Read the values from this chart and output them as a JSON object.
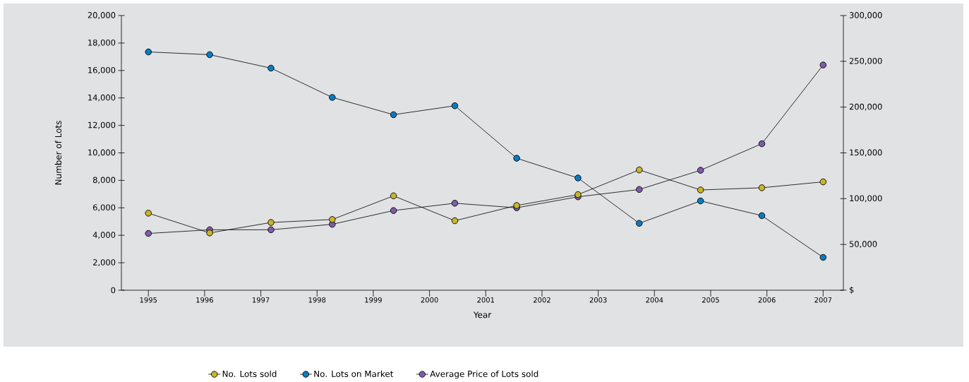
{
  "chart_data": {
    "type": "line",
    "xlabel": "Year",
    "ylabel": "Number of Lots",
    "x": [
      1995,
      1996.09,
      1997.18,
      1998.27,
      1999.36,
      2000.45,
      2001.55,
      2002.64,
      2003.73,
      2004.82,
      2005.91,
      2007
    ],
    "series": [
      {
        "name": "No. Lots sold",
        "color": "#c9b52a",
        "values": [
          5610,
          4170,
          4930,
          5150,
          6870,
          5060,
          6170,
          6960,
          8760,
          7300,
          7460,
          7890
        ]
      },
      {
        "name": "No. Lots on Market",
        "color": "#0a7bc1",
        "values": [
          17350,
          17150,
          16170,
          14040,
          12780,
          13430,
          9610,
          8170,
          4870,
          6500,
          5430,
          2390
        ]
      },
      {
        "name": "Average Price of Lots sold",
        "color": "#7d5ca8",
        "axis": "y2",
        "values": [
          62000,
          66000,
          66000,
          72000,
          87000,
          95000,
          90000,
          102000,
          110000,
          131000,
          160000,
          246000
        ]
      }
    ],
    "xlim": [
      1994.52,
      2007.36
    ],
    "xticks": [
      1995,
      1996,
      1997,
      1998,
      1999,
      2000,
      2001,
      2002,
      2003,
      2004,
      2005,
      2006,
      2007
    ],
    "ylim": [
      0,
      20000
    ],
    "yticks": [
      {
        "value": 0,
        "label": "0"
      },
      {
        "value": 2000,
        "label": "2,000"
      },
      {
        "value": 4000,
        "label": "4,000"
      },
      {
        "value": 6000,
        "label": "6,000"
      },
      {
        "value": 8000,
        "label": "8,000"
      },
      {
        "value": 10000,
        "label": "10,000"
      },
      {
        "value": 12000,
        "label": "12,000"
      },
      {
        "value": 14000,
        "label": "14,000"
      },
      {
        "value": 16000,
        "label": "16,000"
      },
      {
        "value": 18000,
        "label": "18,000"
      },
      {
        "value": 20000,
        "label": "20,000"
      }
    ],
    "y2lim": [
      0,
      300000
    ],
    "y2ticks": [
      {
        "value": 0,
        "label": "$"
      },
      {
        "value": 50000,
        "label": "50,000"
      },
      {
        "value": 100000,
        "label": "100,000"
      },
      {
        "value": 150000,
        "label": "150,000"
      },
      {
        "value": 200000,
        "label": "200,000"
      },
      {
        "value": 250000,
        "label": "250,000"
      },
      {
        "value": 300000,
        "label": "300,000"
      }
    ],
    "marker": "circle",
    "line_style": "solid",
    "legend": "bottom",
    "grid": false
  }
}
